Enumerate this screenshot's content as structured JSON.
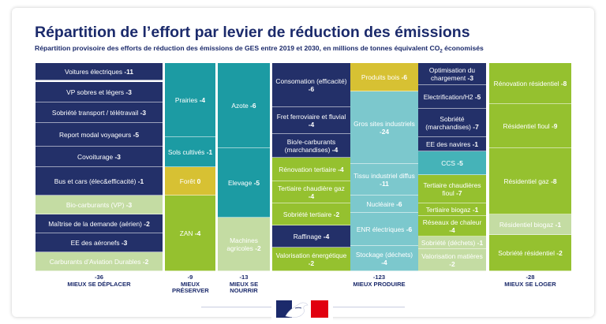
{
  "title": "Répartition de l’effort par levier de réduction des émissions",
  "subtitle": "Répartition provisoire des efforts de réduction des émissions de GES entre 2019 et 2030, en millions de tonnes équivalent CO",
  "subtitle_sub": "2",
  "subtitle_end": " économisés",
  "colors": {
    "navy": "#233069",
    "green": "#95c12f",
    "teal": "#1c9ba3",
    "lightteal": "#7cc8cd",
    "lightgreen": "#c4dca3",
    "gold": "#d7c133",
    "midteal": "#45b3b8",
    "darkteal": "#1b8b93"
  },
  "chart_data": {
    "type": "treemap",
    "title": "Répartition de l’effort par levier de réduction des émissions",
    "unit": "MtCO2e",
    "groups": [
      {
        "name": "MIEUX SE DÉPLACER",
        "total_label": "-36",
        "total": -36,
        "items": [
          {
            "label": "Voitures électriques",
            "value_label": "-11",
            "value": -11
          },
          {
            "label": "VP sobres et légers",
            "value_label": "-3",
            "value": -3
          },
          {
            "label": "Sobriété transport / télétravail",
            "value_label": "-3",
            "value": -3
          },
          {
            "label": "Report modal voyageurs",
            "value_label": "-5",
            "value": -5
          },
          {
            "label": "Covoiturage",
            "value_label": "-3",
            "value": -3
          },
          {
            "label": "Bus et cars (élec&efficacité)",
            "value_label": "-1",
            "value": -1
          },
          {
            "label": "Bio-carburants (VP)",
            "value_label": "-3",
            "value": -3
          },
          {
            "label": "Maîtrise de la demande (aérien)",
            "value_label": "-2",
            "value": -2
          },
          {
            "label": "EE des aéronefs",
            "value_label": "-3",
            "value": -3
          },
          {
            "label": "Carburants d’Aviation Durables",
            "value_label": "-2",
            "value": -2
          }
        ]
      },
      {
        "name": "MIEUX PRÉSERVER",
        "total_label": "-9",
        "total": -9,
        "items": [
          {
            "label": "Prairies",
            "value_label": "-4",
            "value": -4
          },
          {
            "label": "Sols cultivés",
            "value_label": "-1",
            "value": -1
          },
          {
            "label": "Forêt",
            "value_label": "0",
            "value": 0
          },
          {
            "label": "ZAN",
            "value_label": "-4",
            "value": -4
          }
        ]
      },
      {
        "name": "MIEUX SE NOURRIR",
        "total_label": "-13",
        "total": -13,
        "items": [
          {
            "label": "Azote",
            "value_label": "-6",
            "value": -6
          },
          {
            "label": "Elevage",
            "value_label": "-5",
            "value": -5
          },
          {
            "label": "Machines agricoles",
            "value_label": "-2",
            "value": -2
          }
        ]
      },
      {
        "name": "MIEUX PRODUIRE",
        "total_label": "-123",
        "total": -123,
        "items": [
          {
            "label": "Consomation (efficacité)",
            "value_label": "-6",
            "value": -6
          },
          {
            "label": "Fret ferroviaire et fluvial",
            "value_label": "-4",
            "value": -4
          },
          {
            "label": "Bio/e-carburants (marchandises)",
            "value_label": "-4",
            "value": -4
          },
          {
            "label": "Rénovation tertiaire",
            "value_label": "-4",
            "value": -4
          },
          {
            "label": "Tertiaire chaudière gaz",
            "value_label": "-4",
            "value": -4
          },
          {
            "label": "Sobriété tertiaire",
            "value_label": "-2",
            "value": -2
          },
          {
            "label": "Raffinage",
            "value_label": "-4",
            "value": -4
          },
          {
            "label": "Valorisation énergétique",
            "value_label": "-2",
            "value": -2
          },
          {
            "label": "Produits bois",
            "value_label": "-6",
            "value": -6
          },
          {
            "label": "Gros sites industriels",
            "value_label": "-24",
            "value": -24
          },
          {
            "label": "Tissu industriel diffus",
            "value_label": "-11",
            "value": -11
          },
          {
            "label": "Nucléaire",
            "value_label": "-6",
            "value": -6
          },
          {
            "label": "ENR électriques",
            "value_label": "-6",
            "value": -6
          },
          {
            "label": "Stockage (déchets)",
            "value_label": "-4",
            "value": -4
          },
          {
            "label": "Optimisation du chargement",
            "value_label": "-3",
            "value": -3
          },
          {
            "label": "Electrification/H2",
            "value_label": "-5",
            "value": -5
          },
          {
            "label": "Sobriété (marchandises)",
            "value_label": "-7",
            "value": -7
          },
          {
            "label": "EE des navires",
            "value_label": "-1",
            "value": -1
          },
          {
            "label": "CCS",
            "value_label": "-5",
            "value": -5
          },
          {
            "label": "Tertiaire chaudières fioul",
            "value_label": "-7",
            "value": -7
          },
          {
            "label": "Tertiaire biogaz",
            "value_label": "-1",
            "value": -1
          },
          {
            "label": "Réseaux de chaleur",
            "value_label": "-4",
            "value": -4
          },
          {
            "label": "Sobriété (déchets)",
            "value_label": "-1",
            "value": -1
          },
          {
            "label": "Valorisation matières",
            "value_label": "-2",
            "value": -2
          }
        ]
      },
      {
        "name": "MIEUX SE LOGER",
        "total_label": "-28",
        "total": -28,
        "items": [
          {
            "label": "Rénovation résidentiel",
            "value_label": "-8",
            "value": -8
          },
          {
            "label": "Résidentiel fioul",
            "value_label": "-9",
            "value": -9
          },
          {
            "label": "Résidentiel gaz",
            "value_label": "-8",
            "value": -8
          },
          {
            "label": "Résidentiel biogaz",
            "value_label": "-1",
            "value": -1
          },
          {
            "label": "Sobriété résidentiel",
            "value_label": "-2",
            "value": -2
          }
        ]
      }
    ]
  }
}
